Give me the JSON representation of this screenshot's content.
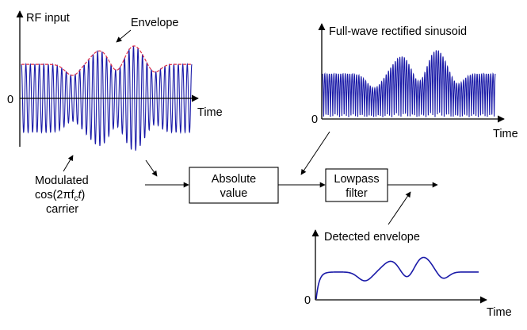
{
  "labels": {
    "rf_input": "RF input",
    "envelope": "Envelope",
    "time_rf": "Time",
    "zero_rf": "0",
    "full_wave": "Full-wave rectified sinusoid",
    "time_fw": "Time",
    "zero_fw": "0",
    "carrier_line1": "Modulated",
    "carrier_line2_prefix": "cos(2πf",
    "carrier_line2_sub": "c",
    "carrier_line2_t": "t",
    "carrier_line2_suffix": ")",
    "carrier_line3": "carrier",
    "detected": "Detected envelope",
    "time_det": "Time",
    "zero_det": "0"
  },
  "blocks": {
    "absolute_line1": "Absolute",
    "absolute_line2": "value",
    "lowpass_line1": "Lowpass",
    "lowpass_line2": "filter"
  },
  "colors": {
    "signal": "#1a1aa8",
    "envelope": "#e0304a",
    "ink": "#000000"
  }
}
